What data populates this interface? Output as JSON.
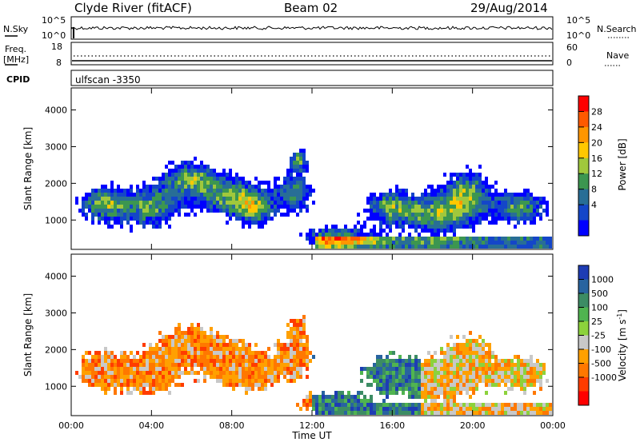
{
  "header": {
    "station": "Clyde River (fitACF)",
    "beam": "Beam 02",
    "date": "29/Aug/2014"
  },
  "top_panels": {
    "nsky_label": "N.Sky",
    "nsearch_label": "N.Search",
    "exp_ticks_left": [
      "10^5",
      "10^0"
    ],
    "exp_ticks_right": [
      "10^5",
      "10^0"
    ],
    "freq_label_1": "Freq.",
    "freq_label_2": "[MHz]",
    "freq_ticks": [
      "18",
      "8"
    ],
    "nave_label": "Nave",
    "nave_ticks": [
      "60",
      "0"
    ],
    "cpid_label": "CPID",
    "cpid_value": "ulfscan -3350"
  },
  "chart_data": [
    {
      "type": "heatmap",
      "name": "power",
      "ylabel": "Slant Range [km]",
      "xlabel": "",
      "ylim": [
        200,
        4600
      ],
      "y_ticks": [
        "4000",
        "3000",
        "2000",
        "1000"
      ],
      "x_ticks": [
        "00:00",
        "04:00",
        "08:00",
        "12:00",
        "16:00",
        "20:00",
        "00:00"
      ],
      "colorbar": {
        "title": "Power [dB]",
        "ticks": [
          "28",
          "24",
          "20",
          "16",
          "12",
          "8",
          "4"
        ],
        "colors": [
          "#ff0000",
          "#ff5a00",
          "#ff9600",
          "#ffc800",
          "#a0c83c",
          "#3c9650",
          "#286e96",
          "#1446c8",
          "#0000ff"
        ]
      }
    },
    {
      "type": "heatmap",
      "name": "velocity",
      "ylabel": "Slant Range [km]",
      "xlabel": "Time UT",
      "ylim": [
        200,
        4600
      ],
      "y_ticks": [
        "4000",
        "3000",
        "2000",
        "1000"
      ],
      "x_ticks": [
        "00:00",
        "04:00",
        "08:00",
        "12:00",
        "16:00",
        "20:00",
        "00:00"
      ],
      "colorbar": {
        "title": "Velocity [m s",
        "title_sup": "-1",
        "title_end": "]",
        "ticks": [
          "1000",
          "500",
          "100",
          "25",
          "-25",
          "-100",
          "-500",
          "-1000"
        ],
        "colors": [
          "#1e3cb4",
          "#2864a0",
          "#3c8c64",
          "#50b450",
          "#8cd23c",
          "#c8c8c8",
          "#ffa000",
          "#ff7800",
          "#ff3c00",
          "#ff0000"
        ]
      }
    }
  ]
}
